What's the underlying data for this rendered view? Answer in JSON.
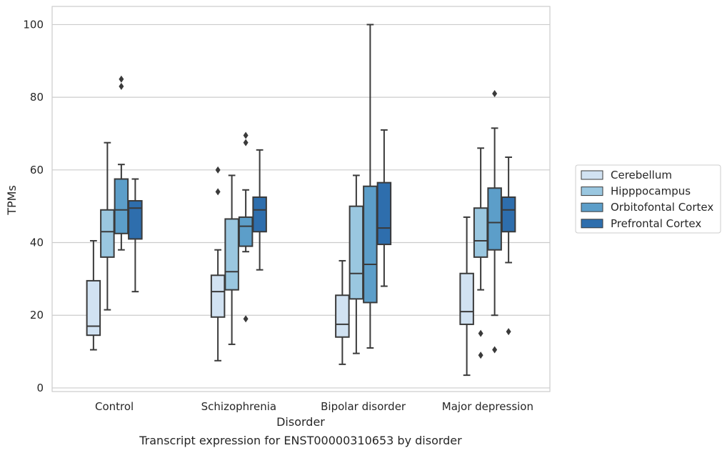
{
  "chart_data": {
    "type": "box",
    "xlabel": "Disorder",
    "ylabel": "TPMs",
    "caption": "Transcript expression for ENST00000310653 by disorder",
    "ylim": [
      -1,
      105
    ],
    "yticks": [
      0,
      20,
      40,
      60,
      80,
      100
    ],
    "grid": "horizontal",
    "legend_position": "right",
    "categories": [
      "Control",
      "Schizophrenia",
      "Bipolar disorder",
      "Major depression"
    ],
    "series": [
      {
        "name": "Cerebellum",
        "color": "#d1e2f2",
        "boxes": [
          {
            "whislo": 10.5,
            "q1": 14.5,
            "median": 17,
            "q3": 29.5,
            "whishi": 40.5,
            "fliers": []
          },
          {
            "whislo": 7.5,
            "q1": 19.5,
            "median": 26.5,
            "q3": 31,
            "whishi": 38,
            "fliers": [
              54,
              60
            ]
          },
          {
            "whislo": 6.5,
            "q1": 14,
            "median": 17.5,
            "q3": 25.5,
            "whishi": 35,
            "fliers": []
          },
          {
            "whislo": 3.5,
            "q1": 17.5,
            "median": 21,
            "q3": 31.5,
            "whishi": 47,
            "fliers": []
          }
        ]
      },
      {
        "name": "Hipppocampus",
        "color": "#9ac7e0",
        "boxes": [
          {
            "whislo": 21.5,
            "q1": 36,
            "median": 43,
            "q3": 49,
            "whishi": 67.5,
            "fliers": []
          },
          {
            "whislo": 12,
            "q1": 27,
            "median": 32,
            "q3": 46.5,
            "whishi": 58.5,
            "fliers": []
          },
          {
            "whislo": 9.5,
            "q1": 24.5,
            "median": 31.5,
            "q3": 50,
            "whishi": 58.5,
            "fliers": []
          },
          {
            "whislo": 27,
            "q1": 36,
            "median": 40.5,
            "q3": 49.5,
            "whishi": 66,
            "fliers": [
              9,
              15
            ]
          }
        ]
      },
      {
        "name": "Orbitofontal Cortex",
        "color": "#5c9ec9",
        "boxes": [
          {
            "whislo": 38,
            "q1": 42.5,
            "median": 49,
            "q3": 57.5,
            "whishi": 61.5,
            "fliers": [
              83,
              85
            ]
          },
          {
            "whislo": 37.5,
            "q1": 39,
            "median": 44.5,
            "q3": 47,
            "whishi": 54.5,
            "fliers": [
              19,
              67.5,
              69.5
            ]
          },
          {
            "whislo": 11,
            "q1": 23.5,
            "median": 34,
            "q3": 55.5,
            "whishi": 100,
            "fliers": []
          },
          {
            "whislo": 20,
            "q1": 38,
            "median": 45.5,
            "q3": 55,
            "whishi": 71.5,
            "fliers": [
              10.5,
              81
            ]
          }
        ]
      },
      {
        "name": "Prefrontal Cortex",
        "color": "#2e6ead",
        "boxes": [
          {
            "whislo": 26.5,
            "q1": 41,
            "median": 49.5,
            "q3": 51.5,
            "whishi": 57.5,
            "fliers": []
          },
          {
            "whislo": 32.5,
            "q1": 43,
            "median": 49,
            "q3": 52.5,
            "whishi": 65.5,
            "fliers": []
          },
          {
            "whislo": 28,
            "q1": 39.5,
            "median": 44,
            "q3": 56.5,
            "whishi": 71,
            "fliers": []
          },
          {
            "whislo": 34.5,
            "q1": 43,
            "median": 49,
            "q3": 52.5,
            "whishi": 63.5,
            "fliers": [
              15.5
            ]
          }
        ]
      }
    ]
  }
}
